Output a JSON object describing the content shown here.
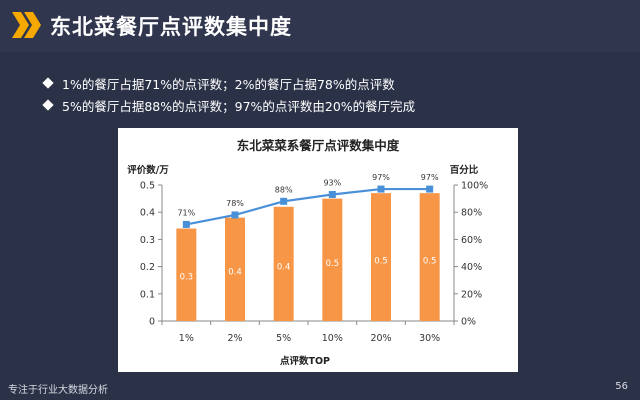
{
  "page": {
    "title": "东北菜餐厅点评数集中度",
    "bullets": [
      "1%的餐厅占据71%的点评数；2%的餐厅占据78%的点评数",
      "5%的餐厅占据88%的点评数；97%的点评数由20%的餐厅完成"
    ],
    "footer_left": "专注于行业大数据分析",
    "page_number": "56",
    "accent_color": "#f5a800",
    "icon": "double-chevron-right-icon"
  },
  "chart_data": {
    "type": "bar",
    "title": "东北菜菜系餐厅点评数集中度",
    "xlabel": "点评数TOP",
    "ylabel": "评价数/万",
    "y2label": "百分比",
    "categories": [
      "1%",
      "2%",
      "5%",
      "10%",
      "20%",
      "30%"
    ],
    "ylim": [
      0,
      0.5
    ],
    "yticks": [
      "0",
      "0.1",
      "0.2",
      "0.3",
      "0.4",
      "0.5"
    ],
    "y2lim": [
      0,
      100
    ],
    "y2ticks": [
      "0%",
      "20%",
      "40%",
      "60%",
      "80%",
      "100%"
    ],
    "bar_values": [
      0.34,
      0.38,
      0.42,
      0.45,
      0.47,
      0.47
    ],
    "bar_labels": [
      "0.3",
      "0.4",
      "0.4",
      "0.5",
      "0.5",
      "0.5"
    ],
    "line_values": [
      71,
      78,
      88,
      93,
      97,
      97
    ],
    "line_labels": [
      "71%",
      "78%",
      "88%",
      "93%",
      "97%",
      "97%"
    ],
    "bar_color": "#f79646",
    "line_color": "#4a90d9",
    "grid": false
  }
}
